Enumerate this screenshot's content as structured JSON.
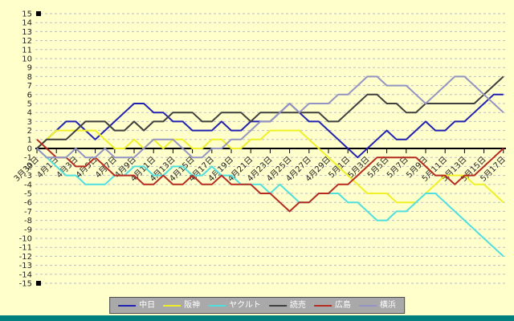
{
  "chart_style": {
    "background": "#FFFFCC",
    "grid_color": "#BDBDBD",
    "axis_color": "#000000",
    "tick_label_color": "#222222",
    "marker_color": "#000000",
    "legend_bg": "#A9A9A9",
    "legend_text_color": "#FFFFFF",
    "window_bottom_bar_color": "#007F7F"
  },
  "y_axis": {
    "tick_labels": [
      "15",
      "14",
      "13",
      "12",
      "11",
      "10",
      "9",
      "8",
      "7",
      "6",
      "5",
      "4",
      "3",
      "2",
      "1",
      "0",
      "-1",
      "-2",
      "-3",
      "-4",
      "-5",
      "-6",
      "-7",
      "-8",
      "-9",
      "-10",
      "-11",
      "-12",
      "-13",
      "-14",
      "-15"
    ]
  },
  "x_axis": {
    "tick_labels": [
      "3月30日",
      "4月1日",
      "4月3日",
      "4月5日",
      "4月7日",
      "4月9日",
      "4月11日",
      "4月13日",
      "4月15日",
      "4月17日",
      "4月19日",
      "4月21日",
      "4月23日",
      "4月25日",
      "4月27日",
      "4月29日",
      "5月1日",
      "5月3日",
      "5月5日",
      "5月7日",
      "5月9日",
      "5月11日",
      "5月13日",
      "5月15日",
      "5月17日"
    ]
  },
  "chart_data": {
    "type": "line",
    "title": "",
    "xlabel": "",
    "ylabel": "",
    "ylim": [
      -15,
      15
    ],
    "grid": true,
    "legend_position": "bottom",
    "x": [
      "3月30日",
      "3月31日",
      "4月1日",
      "4月2日",
      "4月3日",
      "4月4日",
      "4月5日",
      "4月6日",
      "4月7日",
      "4月8日",
      "4月9日",
      "4月10日",
      "4月11日",
      "4月12日",
      "4月13日",
      "4月14日",
      "4月15日",
      "4月16日",
      "4月17日",
      "4月18日",
      "4月19日",
      "4月20日",
      "4月21日",
      "4月22日",
      "4月23日",
      "4月24日",
      "4月25日",
      "4月26日",
      "4月27日",
      "4月28日",
      "4月29日",
      "4月30日",
      "5月1日",
      "5月2日",
      "5月3日",
      "5月4日",
      "5月5日",
      "5月6日",
      "5月7日",
      "5月8日",
      "5月9日",
      "5月10日",
      "5月11日",
      "5月12日",
      "5月13日",
      "5月14日",
      "5月15日",
      "5月16日",
      "5月17日"
    ],
    "series": [
      {
        "name": "中日",
        "color": "#2222B2",
        "values": [
          0,
          1,
          2,
          3,
          3,
          2,
          1,
          2,
          3,
          4,
          5,
          5,
          4,
          4,
          3,
          3,
          2,
          2,
          2,
          3,
          2,
          2,
          3,
          3,
          3,
          4,
          5,
          4,
          3,
          3,
          2,
          1,
          0,
          -1,
          0,
          1,
          2,
          1,
          1,
          2,
          3,
          2,
          2,
          3,
          3,
          4,
          5,
          6,
          6
        ]
      },
      {
        "name": "阪神",
        "color": "#F0F028",
        "values": [
          0,
          1,
          2,
          2,
          2,
          2,
          2,
          1,
          0,
          0,
          1,
          0,
          1,
          0,
          1,
          1,
          0,
          0,
          1,
          1,
          0,
          0,
          1,
          1,
          2,
          2,
          2,
          2,
          1,
          0,
          -1,
          -2,
          -3,
          -4,
          -5,
          -5,
          -5,
          -6,
          -6,
          -6,
          -5,
          -4,
          -3,
          -3,
          -3,
          -4,
          -4,
          -5,
          -6
        ]
      },
      {
        "name": "ヤクルト",
        "color": "#4FDFDF",
        "values": [
          0,
          -1,
          -2,
          -3,
          -3,
          -4,
          -4,
          -4,
          -3,
          -3,
          -2,
          -2,
          -3,
          -3,
          -2,
          -2,
          -3,
          -3,
          -2,
          -3,
          -3,
          -4,
          -4,
          -4,
          -5,
          -4,
          -5,
          -6,
          -6,
          -5,
          -5,
          -5,
          -6,
          -6,
          -7,
          -8,
          -8,
          -7,
          -7,
          -6,
          -5,
          -5,
          -6,
          -7,
          -8,
          -9,
          -10,
          -11,
          -12
        ]
      },
      {
        "name": "読売",
        "color": "#3F3F3F",
        "values": [
          0,
          1,
          1,
          1,
          2,
          3,
          3,
          3,
          2,
          2,
          3,
          2,
          3,
          3,
          4,
          4,
          4,
          3,
          3,
          4,
          4,
          4,
          3,
          4,
          4,
          4,
          4,
          4,
          4,
          4,
          3,
          3,
          4,
          5,
          6,
          6,
          5,
          5,
          4,
          4,
          5,
          5,
          5,
          5,
          5,
          5,
          6,
          7,
          8
        ]
      },
      {
        "name": "広島",
        "color": "#B52A21",
        "values": [
          1,
          0,
          -1,
          -1,
          -2,
          -2,
          -1,
          -2,
          -3,
          -3,
          -3,
          -4,
          -4,
          -3,
          -4,
          -4,
          -3,
          -4,
          -4,
          -3,
          -4,
          -4,
          -4,
          -5,
          -5,
          -6,
          -7,
          -6,
          -6,
          -5,
          -5,
          -4,
          -4,
          -3,
          -2,
          -1,
          -1,
          -1,
          -1,
          -1,
          -2,
          -3,
          -3,
          -4,
          -3,
          -3,
          -2,
          -1,
          0
        ]
      },
      {
        "name": "横浜",
        "color": "#9494C4",
        "values": [
          0,
          -1,
          -1,
          -1,
          0,
          -1,
          -1,
          0,
          -1,
          -1,
          -1,
          0,
          1,
          1,
          1,
          0,
          -1,
          -1,
          0,
          0,
          1,
          1,
          2,
          3,
          3,
          4,
          5,
          4,
          5,
          5,
          5,
          6,
          6,
          7,
          8,
          8,
          7,
          7,
          7,
          6,
          5,
          6,
          7,
          8,
          8,
          7,
          6,
          5,
          4
        ]
      }
    ],
    "markers": [
      {
        "value": 15,
        "shape": "square"
      },
      {
        "value": -15,
        "shape": "square"
      }
    ]
  }
}
